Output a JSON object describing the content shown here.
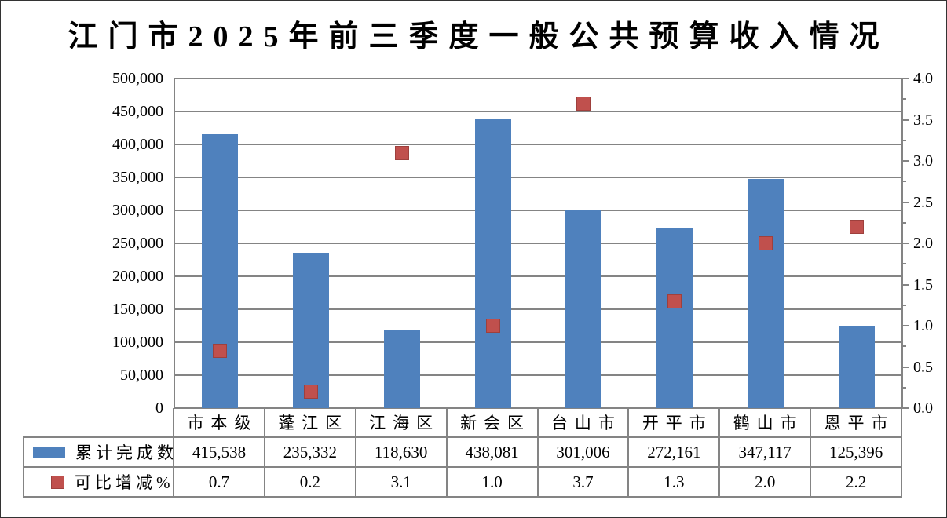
{
  "title": "江门市2025年前三季度一般公共预算收入情况",
  "colors": {
    "bar": "#4F81BD",
    "marker": "#C0504D",
    "marker_border": "#9E403D",
    "grid": "#848484",
    "axis": "#848484",
    "table_border": "#848484",
    "text": "#000000",
    "background": "#FFFFFF"
  },
  "chart_data": {
    "type": "bar",
    "subtype": "combo bar + scatter markers, dual axis, with data table",
    "title": "江门市2025年前三季度一般公共预算收入情况",
    "categories": [
      "市本级",
      "蓬江区",
      "江海区",
      "新会区",
      "台山市",
      "开平市",
      "鹤山市",
      "恩平市"
    ],
    "series": [
      {
        "name": "累计完成数",
        "type": "bar",
        "axis": "left",
        "color": "#4F81BD",
        "values": [
          415538,
          235332,
          118630,
          438081,
          301006,
          272161,
          347117,
          125396
        ],
        "labels": [
          "415,538",
          "235,332",
          "118,630",
          "438,081",
          "301,006",
          "272,161",
          "347,117",
          "125,396"
        ]
      },
      {
        "name": "可比增减%",
        "type": "scatter",
        "axis": "right",
        "color": "#C0504D",
        "values": [
          0.7,
          0.2,
          3.1,
          1.0,
          3.7,
          1.3,
          2.0,
          2.2
        ],
        "labels": [
          "0.7",
          "0.2",
          "3.1",
          "1.0",
          "3.7",
          "1.3",
          "2.0",
          "2.2"
        ]
      }
    ],
    "left_axis": {
      "min": 0,
      "max": 500000,
      "major_step": 50000,
      "tick_labels": [
        "0",
        "50,000",
        "100,000",
        "150,000",
        "200,000",
        "250,000",
        "300,000",
        "350,000",
        "400,000",
        "450,000",
        "500,000"
      ]
    },
    "right_axis": {
      "min": 0,
      "max": 4,
      "major_step": 0.5,
      "minor_step": 0.25,
      "tick_labels": [
        "0.0",
        "0.5",
        "1.0",
        "1.5",
        "2.0",
        "2.5",
        "3.0",
        "3.5",
        "4.0"
      ]
    },
    "grid": true,
    "legend_position": "table-left"
  }
}
